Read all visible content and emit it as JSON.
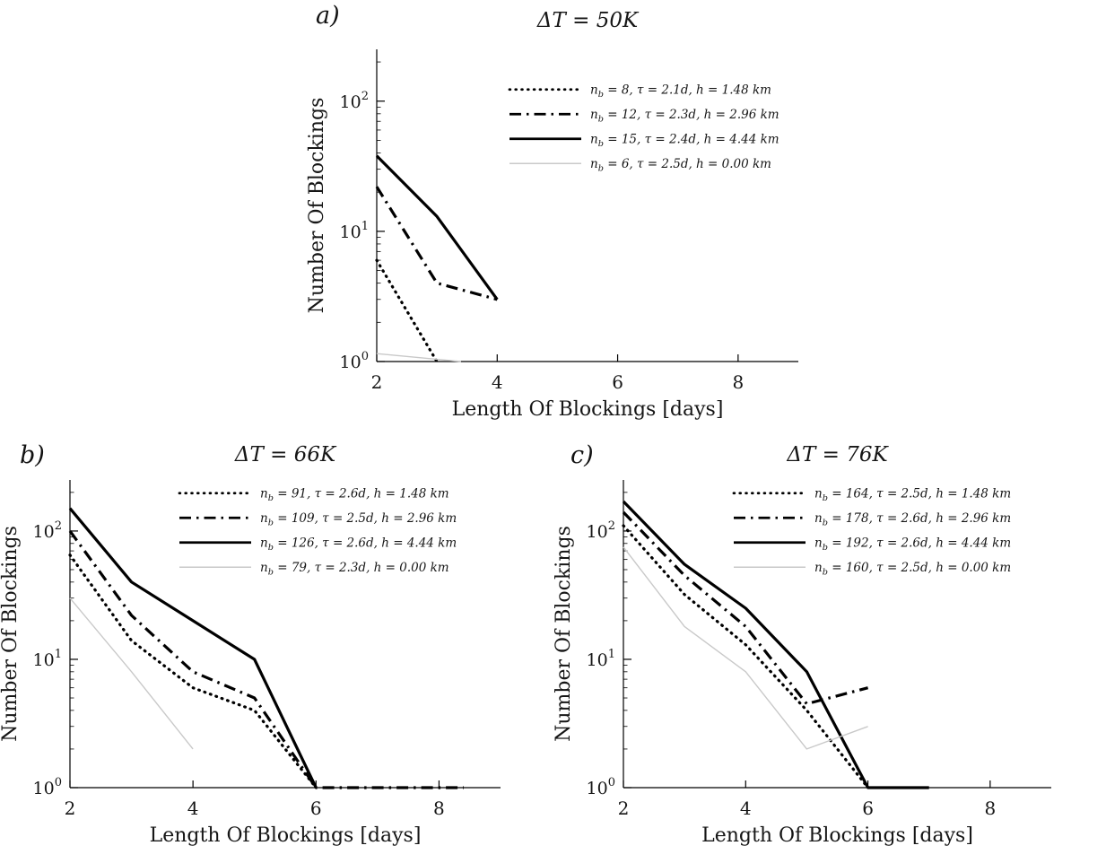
{
  "chart_data": [
    {
      "id": "a",
      "type": "line",
      "panel_label": "a)",
      "title": "ΔT = 50K",
      "xlabel": "Length Of Blockings [days]",
      "ylabel": "Number Of Blockings",
      "xlim": [
        2,
        9
      ],
      "xticks": [
        2,
        4,
        6,
        8
      ],
      "yscale": "log",
      "ylim": [
        1,
        250
      ],
      "yticks": [
        1,
        10,
        100
      ],
      "grid": false,
      "legend_location": "upper right",
      "series": [
        {
          "label": "n_b = 8, τ = 2.1d, h = 1.48 km",
          "style": "dotted",
          "color": "#000000",
          "line_width": 3.2,
          "x": [
            2,
            3
          ],
          "y": [
            6,
            1
          ]
        },
        {
          "label": "n_b = 12, τ = 2.3d, h = 2.96 km",
          "style": "dashdot",
          "color": "#000000",
          "line_width": 3.2,
          "x": [
            2,
            3,
            4
          ],
          "y": [
            22,
            4,
            3
          ]
        },
        {
          "label": "n_b = 15, τ = 2.4d, h = 4.44 km",
          "style": "solid",
          "color": "#000000",
          "line_width": 3.2,
          "x": [
            2,
            3,
            4
          ],
          "y": [
            38,
            13,
            3
          ]
        },
        {
          "label": "n_b = 6, τ = 2.5d, h = 0.00 km",
          "style": "solid",
          "color": "#c9c9c9",
          "line_width": 1.4,
          "x": [
            2,
            3.4
          ],
          "y": [
            1.15,
            1
          ]
        }
      ]
    },
    {
      "id": "b",
      "type": "line",
      "panel_label": "b)",
      "title": "ΔT = 66K",
      "xlabel": "Length Of Blockings [days]",
      "ylabel": "Number Of Blockings",
      "xlim": [
        2,
        9
      ],
      "xticks": [
        2,
        4,
        6,
        8
      ],
      "yscale": "log",
      "ylim": [
        1,
        250
      ],
      "yticks": [
        1,
        10,
        100
      ],
      "grid": false,
      "legend_location": "upper right",
      "series": [
        {
          "label": "n_b = 91, τ = 2.6d, h = 1.48 km",
          "style": "dotted",
          "color": "#000000",
          "line_width": 3.2,
          "x": [
            2,
            3,
            4,
            5,
            6
          ],
          "y": [
            65,
            14,
            6,
            4,
            1
          ]
        },
        {
          "label": "n_b = 109, τ = 2.5d, h = 2.96 km",
          "style": "dashdot",
          "color": "#000000",
          "line_width": 3.2,
          "x": [
            2,
            3,
            4,
            5,
            6,
            8.4
          ],
          "y": [
            100,
            22,
            8,
            5,
            1,
            1
          ]
        },
        {
          "label": "n_b = 126, τ = 2.6d, h = 4.44 km",
          "style": "solid",
          "color": "#000000",
          "line_width": 3.2,
          "x": [
            2,
            3,
            4,
            5,
            6
          ],
          "y": [
            150,
            40,
            20,
            10,
            1
          ]
        },
        {
          "label": "n_b = 79, τ = 2.3d, h = 0.00 km",
          "style": "solid",
          "color": "#c9c9c9",
          "line_width": 1.4,
          "x": [
            2,
            3,
            4
          ],
          "y": [
            30,
            8,
            2
          ]
        }
      ]
    },
    {
      "id": "c",
      "type": "line",
      "panel_label": "c)",
      "title": "ΔT = 76K",
      "xlabel": "Length Of Blockings [days]",
      "ylabel": "Number Of Blockings",
      "xlim": [
        2,
        9
      ],
      "xticks": [
        2,
        4,
        6,
        8
      ],
      "yscale": "log",
      "ylim": [
        1,
        250
      ],
      "yticks": [
        1,
        10,
        100
      ],
      "grid": false,
      "legend_location": "upper right",
      "series": [
        {
          "label": "n_b = 164, τ = 2.5d, h = 1.48 km",
          "style": "dotted",
          "color": "#000000",
          "line_width": 3.2,
          "x": [
            2,
            3,
            4,
            5,
            6
          ],
          "y": [
            110,
            32,
            13,
            4,
            1
          ]
        },
        {
          "label": "n_b = 178, τ = 2.6d, h = 2.96 km",
          "style": "dashdot",
          "color": "#000000",
          "line_width": 3.2,
          "x": [
            2,
            3,
            4,
            5,
            6
          ],
          "y": [
            140,
            45,
            18,
            4.5,
            6
          ]
        },
        {
          "label": "n_b = 192, τ = 2.6d, h = 4.44 km",
          "style": "solid",
          "color": "#000000",
          "line_width": 3.2,
          "x": [
            2,
            3,
            4,
            5,
            6,
            7
          ],
          "y": [
            170,
            55,
            25,
            8,
            1,
            1
          ]
        },
        {
          "label": "n_b = 160, τ = 2.5d, h = 0.00 km",
          "style": "solid",
          "color": "#c9c9c9",
          "line_width": 1.4,
          "x": [
            2,
            3,
            4,
            5,
            6
          ],
          "y": [
            75,
            18,
            8,
            2,
            3
          ]
        }
      ]
    }
  ]
}
